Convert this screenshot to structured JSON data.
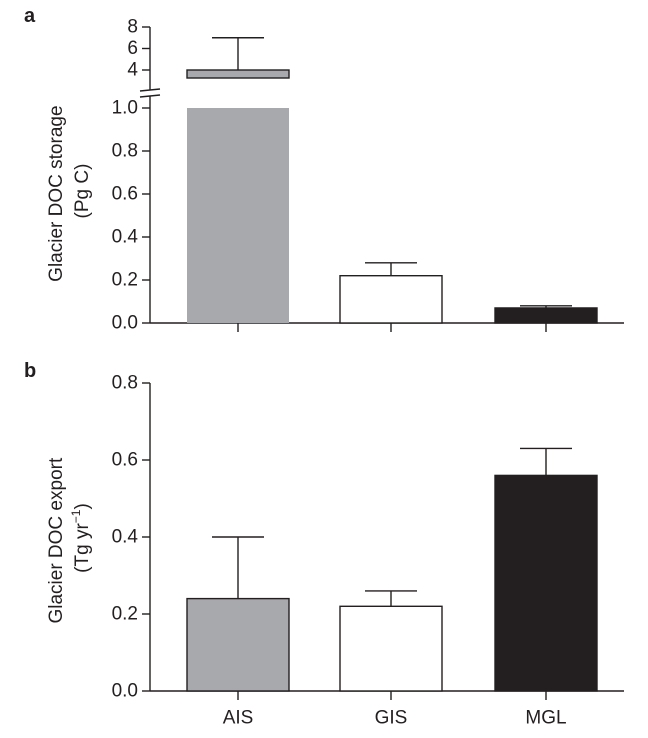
{
  "chart_data": [
    {
      "type": "bar",
      "panel": "a",
      "ylabel_line1": "Glacier DOC storage",
      "ylabel_line2": "(Pg C)",
      "categories": [
        "AIS",
        "GIS",
        "MGL"
      ],
      "values": [
        4.0,
        0.22,
        0.07
      ],
      "error_upper": [
        7.0,
        0.28,
        0.08
      ],
      "bar_colors": [
        "#a7a9ac",
        "#ffffff",
        "#231f20"
      ],
      "y_axis_break": true,
      "ylim_lower": [
        0.0,
        1.0
      ],
      "ylim_upper": [
        3.0,
        8.0
      ],
      "yticks_lower": [
        "0.0",
        "0.2",
        "0.4",
        "0.6",
        "0.8",
        "1.0"
      ],
      "yticks_upper": [
        "4",
        "6",
        "8"
      ],
      "grid": false
    },
    {
      "type": "bar",
      "panel": "b",
      "ylabel_line1": "Glacier DOC export",
      "ylabel_line2": "(Tg yr",
      "ylabel_sup": "−1",
      "ylabel_close": ")",
      "categories": [
        "AIS",
        "GIS",
        "MGL"
      ],
      "values": [
        0.24,
        0.22,
        0.56
      ],
      "error_upper": [
        0.4,
        0.26,
        0.63
      ],
      "bar_colors": [
        "#a7a9ac",
        "#ffffff",
        "#231f20"
      ],
      "ylim": [
        0.0,
        0.8
      ],
      "yticks": [
        "0.0",
        "0.2",
        "0.4",
        "0.6",
        "0.8"
      ],
      "grid": false
    }
  ]
}
